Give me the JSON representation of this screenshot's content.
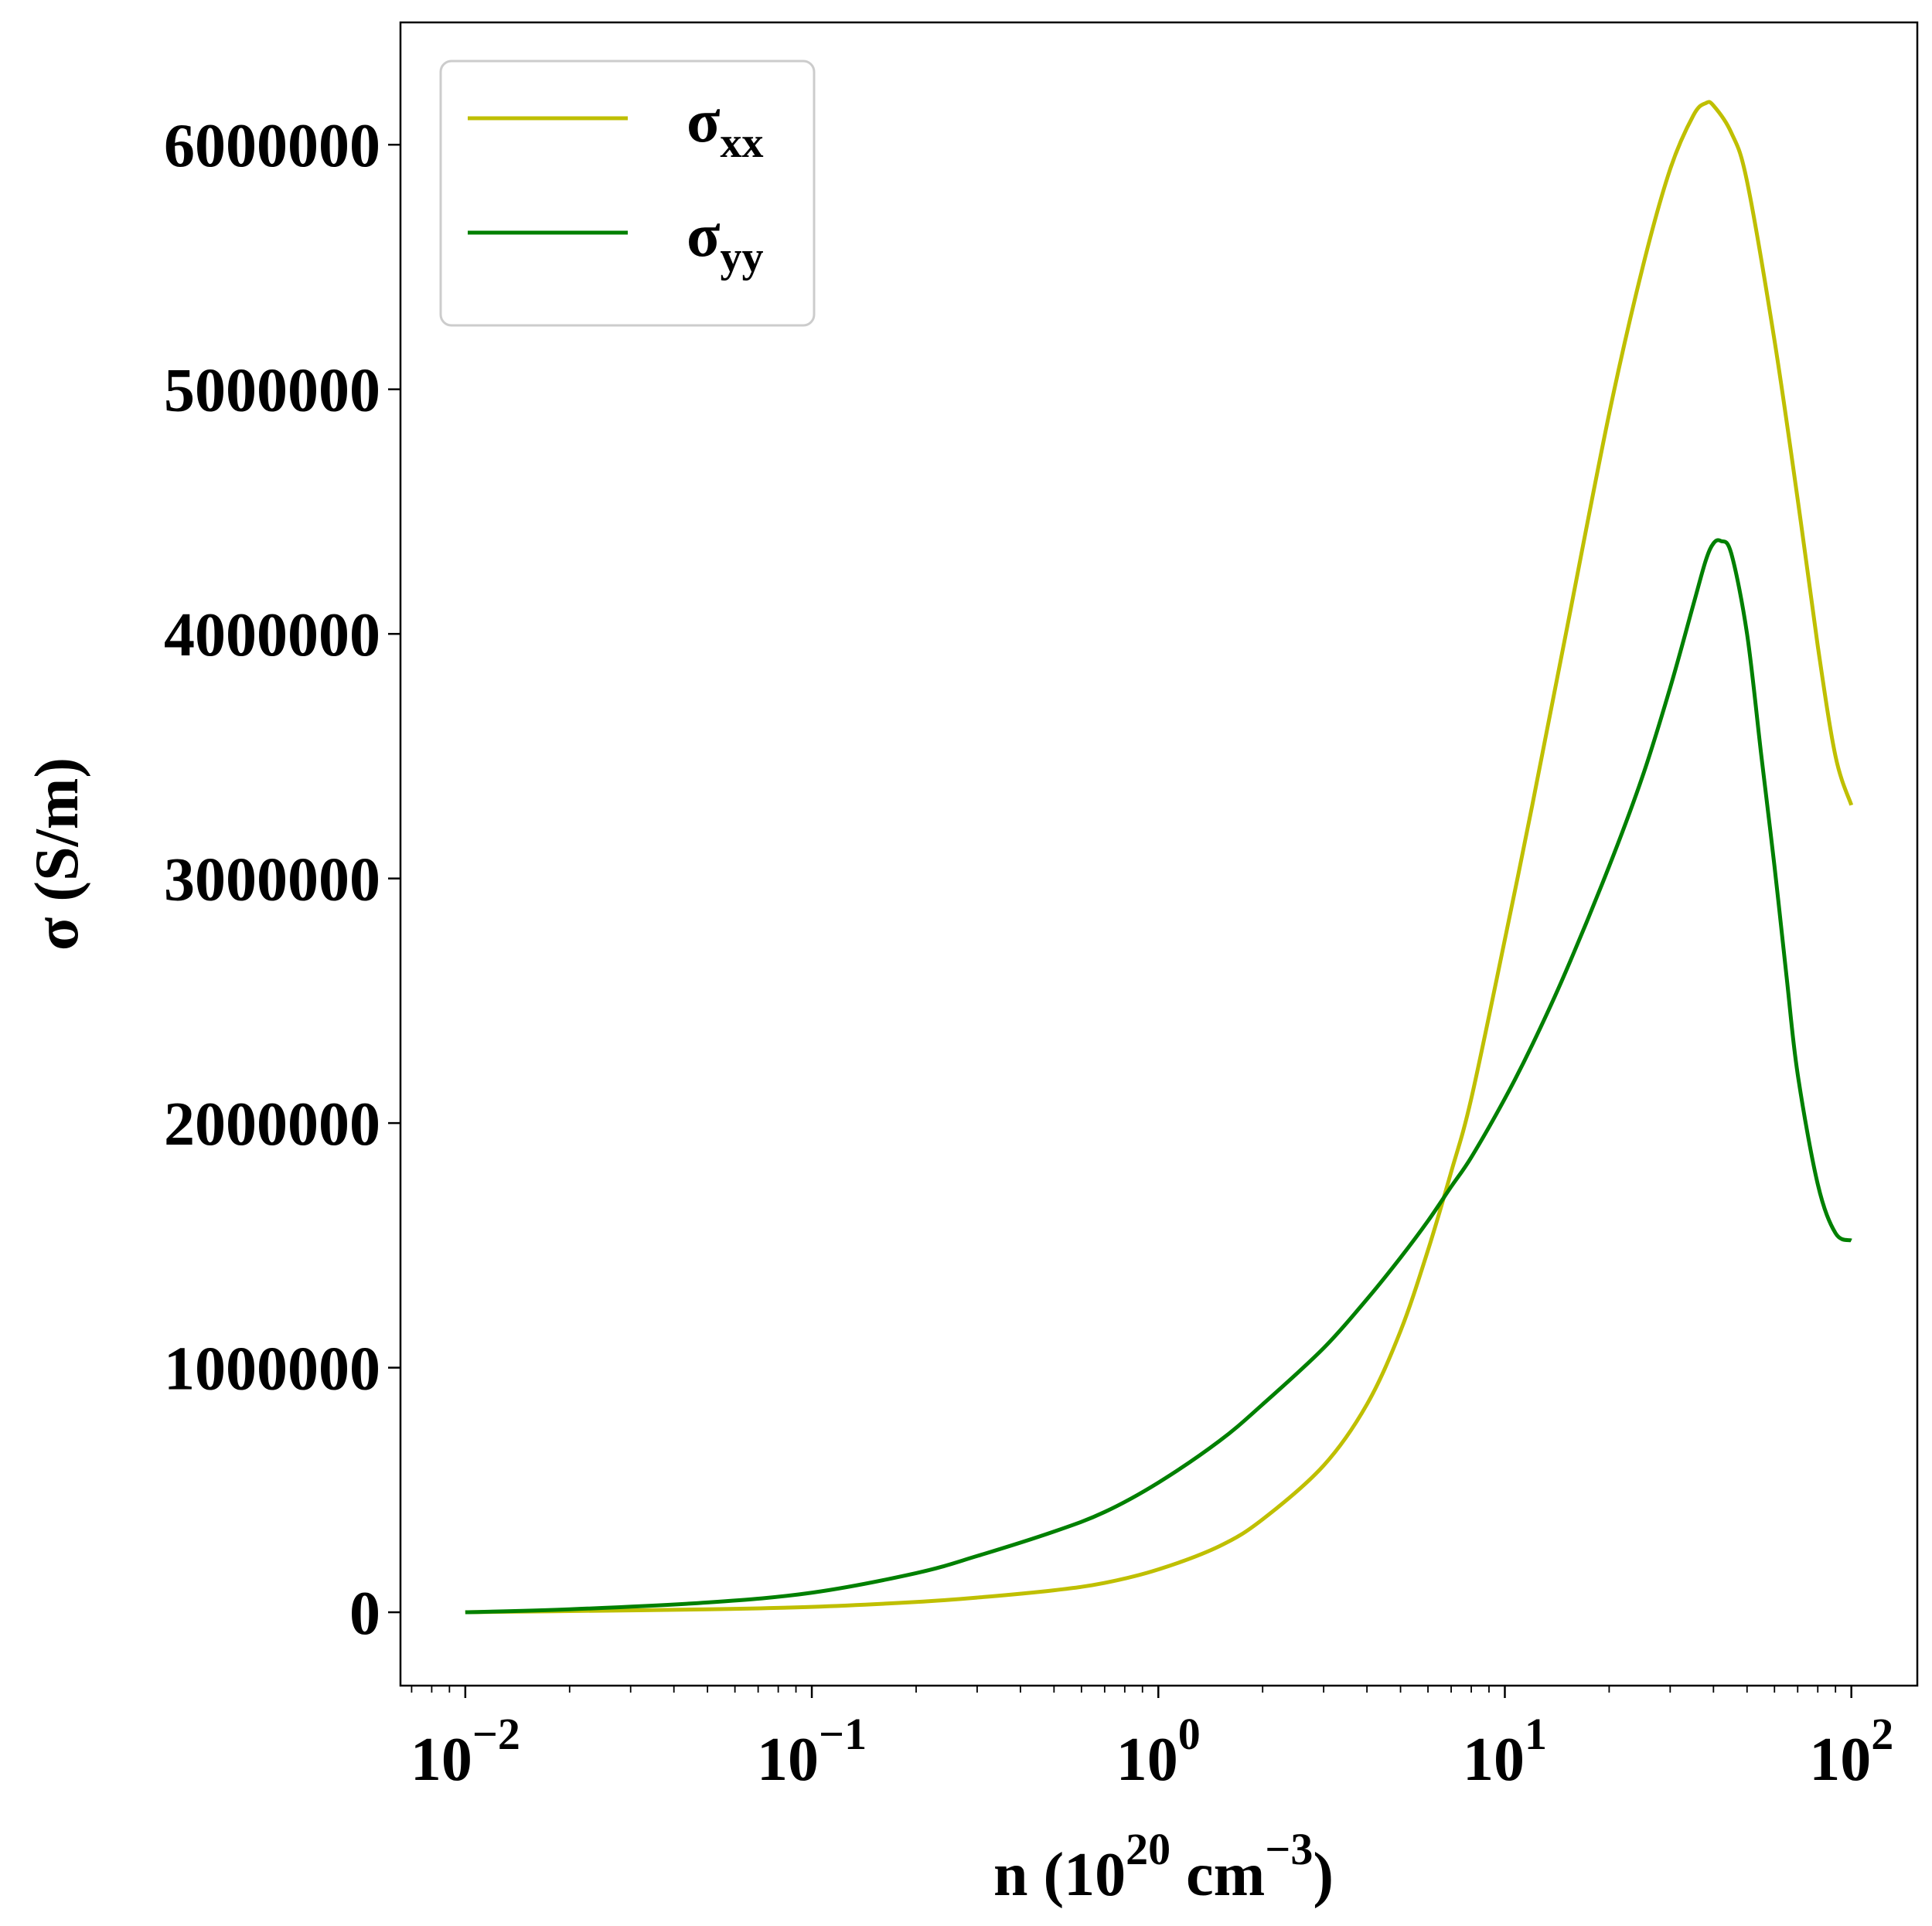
{
  "chart_data": {
    "type": "line",
    "x_scale": "log",
    "xlim": [
      0.0065,
      155
    ],
    "ylim": [
      -300000,
      6500000
    ],
    "xlabel": {
      "text": "n (10",
      "exp1": "20",
      "mid": " cm",
      "exp2": "−3",
      "end": ")"
    },
    "ylabel": "σ (S/m)",
    "x_ticks": [
      {
        "base": "10",
        "exp": "−2",
        "value": 0.01
      },
      {
        "base": "10",
        "exp": "−1",
        "value": 0.1
      },
      {
        "base": "10",
        "exp": "0",
        "value": 1
      },
      {
        "base": "10",
        "exp": "1",
        "value": 10
      },
      {
        "base": "10",
        "exp": "2",
        "value": 100
      }
    ],
    "y_ticks": [
      {
        "label": "0",
        "value": 0
      },
      {
        "label": "1000000",
        "value": 1000000
      },
      {
        "label": "2000000",
        "value": 2000000
      },
      {
        "label": "3000000",
        "value": 3000000
      },
      {
        "label": "4000000",
        "value": 4000000
      },
      {
        "label": "5000000",
        "value": 5000000
      },
      {
        "label": "6000000",
        "value": 6000000
      }
    ],
    "legend_position": "top-left",
    "grid": false,
    "series": [
      {
        "name": "σ",
        "name_sub": "xx",
        "color": "#bfbf00",
        "x": [
          0.01,
          0.02,
          0.05,
          0.1,
          0.2,
          0.3,
          0.5,
          0.7,
          1,
          1.5,
          2,
          3,
          4,
          5,
          6,
          7,
          8,
          10,
          12,
          15,
          20,
          25,
          30,
          35,
          38,
          40,
          45,
          50,
          60,
          70,
          80,
          90,
          100
        ],
        "y": [
          0,
          5000,
          12000,
          22000,
          42000,
          60000,
          90000,
          120000,
          175000,
          270000,
          380000,
          600000,
          850000,
          1150000,
          1480000,
          1800000,
          2100000,
          2750000,
          3300000,
          4000000,
          4900000,
          5500000,
          5900000,
          6120000,
          6170000,
          6160000,
          6050000,
          5850000,
          5200000,
          4550000,
          3950000,
          3500000,
          3300000
        ]
      },
      {
        "name": "σ",
        "name_sub": "yy",
        "color": "#008000",
        "x": [
          0.01,
          0.02,
          0.05,
          0.1,
          0.2,
          0.3,
          0.5,
          0.7,
          1,
          1.5,
          2,
          3,
          4,
          5,
          6,
          7,
          8,
          10,
          12,
          15,
          20,
          25,
          30,
          35,
          38,
          40,
          42,
          45,
          50,
          55,
          60,
          65,
          70,
          80,
          90,
          100
        ],
        "y": [
          0,
          12000,
          40000,
          80000,
          160000,
          230000,
          330000,
          410000,
          530000,
          700000,
          850000,
          1080000,
          1280000,
          1450000,
          1600000,
          1740000,
          1860000,
          2100000,
          2320000,
          2620000,
          3050000,
          3420000,
          3780000,
          4120000,
          4300000,
          4370000,
          4380000,
          4330000,
          4000000,
          3500000,
          3050000,
          2600000,
          2200000,
          1750000,
          1550000,
          1520000
        ]
      }
    ]
  }
}
